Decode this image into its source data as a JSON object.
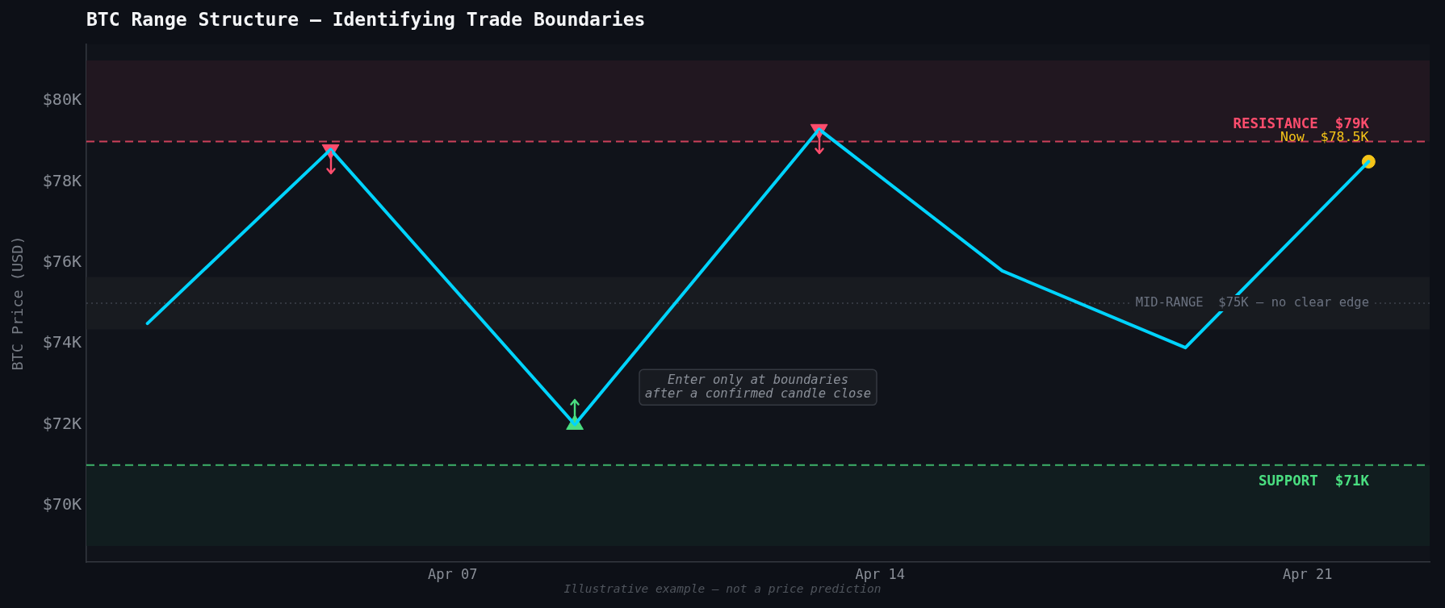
{
  "chart_data": {
    "type": "line",
    "title": "BTC Range Structure — Identifying Trade Boundaries",
    "ylabel": "BTC Price (USD)",
    "x": [
      "--04-02",
      "--04-05",
      "--04-09",
      "--04-13",
      "--04-16",
      "--04-19",
      "--04-22"
    ],
    "series": [
      {
        "color": "#00d4ff",
        "values": [
          74500,
          78800,
          72000,
          79300,
          75800,
          73900,
          78500
        ]
      },
      {
        "type": "scatter",
        "x": [
          "--04-05",
          "--04-13"
        ],
        "values": [
          78800,
          79300
        ],
        "color": "#ff4d6d",
        "marker": "triangle"
      },
      {
        "type": "scatter",
        "x": [
          "--04-09"
        ],
        "values": [
          72000
        ],
        "color": "#4ade80",
        "marker": "triangle"
      },
      {
        "type": "scatter",
        "x": [
          "--04-22"
        ],
        "values": [
          78500
        ],
        "color": "#f5c518",
        "marker": "circle"
      }
    ],
    "xlim": [
      "--04-01",
      "--04-23"
    ],
    "xticks": [
      {
        "value": "--04-07",
        "label": "Apr 07"
      },
      {
        "value": "--04-14",
        "label": "Apr 14"
      },
      {
        "value": "--04-21",
        "label": "Apr 21"
      }
    ],
    "ylim": [
      68600,
      81400
    ],
    "yticks": [
      {
        "value": 70000,
        "label": "$70K"
      },
      {
        "value": 72000,
        "label": "$72K"
      },
      {
        "value": 74000,
        "label": "$74K"
      },
      {
        "value": 76000,
        "label": "$76K"
      },
      {
        "value": 78000,
        "label": "$78K"
      },
      {
        "value": 80000,
        "label": "$80K"
      }
    ],
    "ref_lines": [
      {
        "axis": "y",
        "value": 79000,
        "label": "RESISTANCE  $79K",
        "color": "#ff4d6d",
        "line_style": "dashed"
      },
      {
        "axis": "y",
        "value": 75000,
        "label": "MID-RANGE  $75K — no clear edge",
        "color": "#6b7280",
        "line_style": "dotted"
      },
      {
        "axis": "y",
        "value": 71000,
        "label": "SUPPORT  $71K",
        "color": "#4ade80",
        "line_style": "dashed"
      }
    ],
    "bands": [
      {
        "axis": "y",
        "from": 79000,
        "to": 81000,
        "color": "#211720"
      },
      {
        "axis": "y",
        "from": 74350,
        "to": 75650,
        "color": "#181b20"
      },
      {
        "axis": "y",
        "from": 69000,
        "to": 71000,
        "color": "#111d1f"
      }
    ],
    "annotations": [
      {
        "text": "Now  $78.5K",
        "x": "--04-22",
        "y": 78500
      },
      "Enter only at boundaries\nafter a confirmed candle close",
      "Illustrative example — not a price prediction"
    ],
    "grid": false,
    "legend": false
  }
}
